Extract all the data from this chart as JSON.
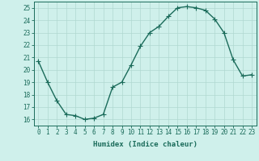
{
  "x": [
    0,
    1,
    2,
    3,
    4,
    5,
    6,
    7,
    8,
    9,
    10,
    11,
    12,
    13,
    14,
    15,
    16,
    17,
    18,
    19,
    20,
    21,
    22,
    23
  ],
  "y": [
    20.7,
    19.0,
    17.5,
    16.4,
    16.3,
    16.0,
    16.1,
    16.4,
    18.6,
    19.0,
    20.4,
    21.9,
    23.0,
    23.5,
    24.3,
    25.0,
    25.1,
    25.0,
    24.8,
    24.1,
    23.0,
    20.8,
    19.5,
    19.6
  ],
  "line_color": "#1a6b5a",
  "marker": "+",
  "markersize": 4,
  "linewidth": 1.0,
  "bg_color": "#cff0eb",
  "grid_color": "#b0d8d0",
  "xlabel": "Humidex (Indice chaleur)",
  "xlim": [
    -0.5,
    23.5
  ],
  "ylim": [
    15.5,
    25.5
  ],
  "yticks": [
    16,
    17,
    18,
    19,
    20,
    21,
    22,
    23,
    24,
    25
  ],
  "xticks": [
    0,
    1,
    2,
    3,
    4,
    5,
    6,
    7,
    8,
    9,
    10,
    11,
    12,
    13,
    14,
    15,
    16,
    17,
    18,
    19,
    20,
    21,
    22,
    23
  ],
  "tick_color": "#1a6b5a",
  "label_fontsize": 6.5,
  "tick_fontsize": 5.5
}
